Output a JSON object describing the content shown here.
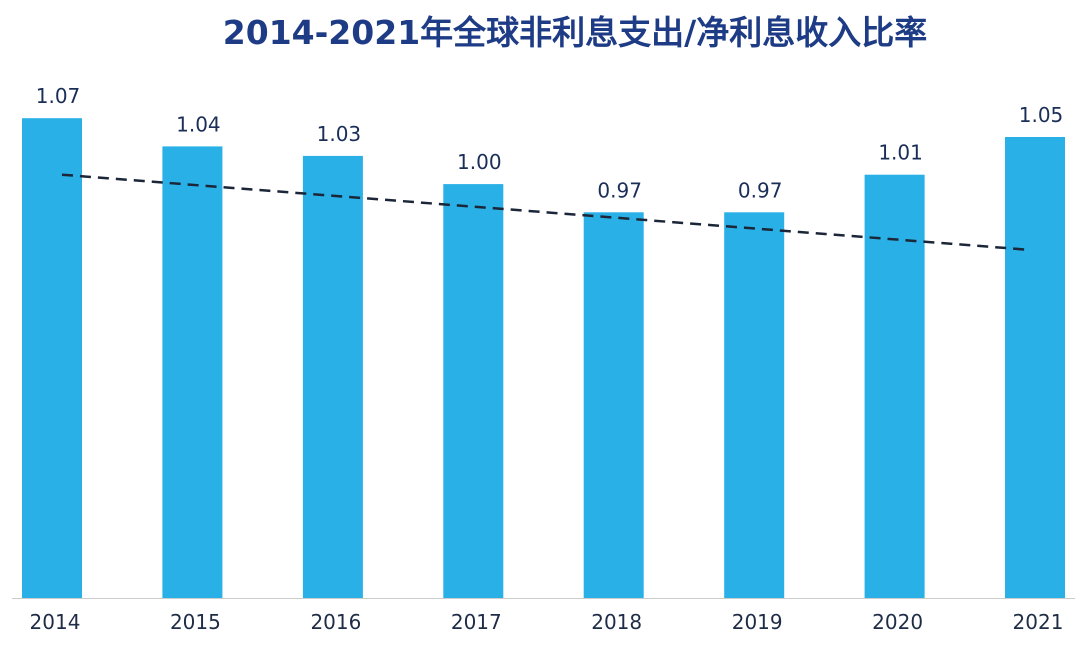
{
  "chart_data": {
    "type": "bar",
    "title": "2014-2021年全球非利息支出/净利息收入比率",
    "categories": [
      "2014",
      "2015",
      "2016",
      "2017",
      "2018",
      "2019",
      "2020",
      "2021"
    ],
    "values": [
      1.07,
      1.04,
      1.03,
      1.0,
      0.97,
      0.97,
      1.01,
      1.05
    ],
    "data_labels": [
      "1.07",
      "1.04",
      "1.03",
      "1.00",
      "0.97",
      "0.97",
      "1.01",
      "1.05"
    ],
    "ylim": [
      0.56,
      1.1
    ],
    "grid": false,
    "trendline": {
      "start": 1.01,
      "end": 0.93
    },
    "colors": {
      "title": "#1e3c86",
      "bar": "#29b0e6",
      "data_label": "#1a2e57",
      "tick_label": "#1f2c46",
      "trendline": "#1b2638"
    }
  }
}
